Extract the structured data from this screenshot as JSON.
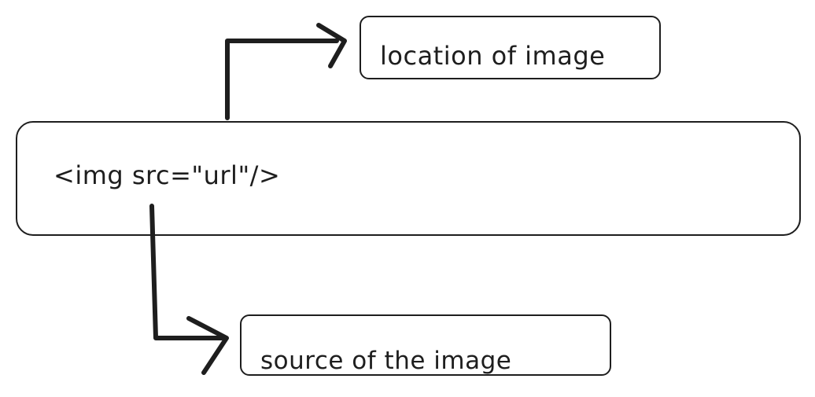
{
  "diagram": {
    "code_snippet": "<img src=\"url\"/>",
    "top_annotation": "location of image",
    "bottom_annotation": "source of the image"
  }
}
